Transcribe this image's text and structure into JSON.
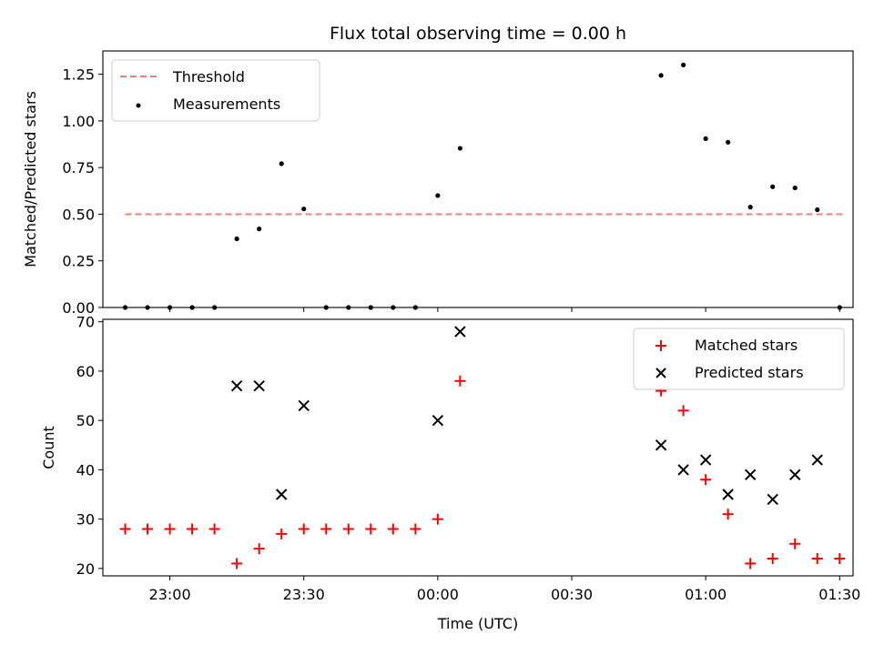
{
  "chart_data": [
    {
      "type": "scatter",
      "title": "Flux total observing time = 0.00 h",
      "xlabel": "",
      "ylabel": "Matched/Predicted stars",
      "ylim": [
        0,
        1.375
      ],
      "yticks": [
        "0.00",
        "0.25",
        "0.50",
        "0.75",
        "1.00",
        "1.25"
      ],
      "ytick_values": [
        0,
        0.25,
        0.5,
        0.75,
        1.0,
        1.25
      ],
      "legend_position": "top-left",
      "threshold": {
        "name": "Threshold",
        "value": 0.5,
        "x_start": "22:50",
        "x_end": "01:31",
        "color": "#f08080"
      },
      "series": [
        {
          "name": "Measurements",
          "color": "#000000",
          "marker": "dot",
          "x": [
            "22:50",
            "22:55",
            "23:00",
            "23:05",
            "23:10",
            "23:15",
            "23:20",
            "23:25",
            "23:30",
            "23:35",
            "23:40",
            "23:45",
            "23:50",
            "23:55",
            "00:00",
            "00:05",
            "00:50",
            "00:55",
            "01:00",
            "01:05",
            "01:10",
            "01:15",
            "01:20",
            "01:25",
            "01:30"
          ],
          "y": [
            0,
            0,
            0,
            0,
            0,
            0.368,
            0.421,
            0.771,
            0.528,
            0,
            0,
            0,
            0,
            0,
            0.6,
            0.853,
            1.244,
            1.3,
            0.905,
            0.886,
            0.538,
            0.647,
            0.641,
            0.524,
            0
          ]
        }
      ]
    },
    {
      "type": "scatter",
      "title": "",
      "xlabel": "Time (UTC)",
      "ylabel": "Count",
      "ylim": [
        18.5,
        70.5
      ],
      "yticks": [
        "20",
        "30",
        "40",
        "50",
        "60",
        "70"
      ],
      "ytick_values": [
        20,
        30,
        40,
        50,
        60,
        70
      ],
      "legend_position": "top-right",
      "series": [
        {
          "name": "Matched stars",
          "color": "#ff0000",
          "marker": "plus",
          "x": [
            "22:50",
            "22:55",
            "23:00",
            "23:05",
            "23:10",
            "23:15",
            "23:20",
            "23:25",
            "23:30",
            "23:35",
            "23:40",
            "23:45",
            "23:50",
            "23:55",
            "00:00",
            "00:05",
            "00:50",
            "00:55",
            "01:00",
            "01:05",
            "01:10",
            "01:15",
            "01:20",
            "01:25",
            "01:30"
          ],
          "y": [
            28,
            28,
            28,
            28,
            28,
            21,
            24,
            27,
            28,
            28,
            28,
            28,
            28,
            28,
            30,
            58,
            56,
            52,
            38,
            31,
            21,
            22,
            25,
            22,
            22
          ]
        },
        {
          "name": "Predicted stars",
          "color": "#000000",
          "marker": "x",
          "x": [
            "23:15",
            "23:20",
            "23:25",
            "23:30",
            "00:00",
            "00:05",
            "00:50",
            "00:55",
            "01:00",
            "01:05",
            "01:10",
            "01:15",
            "01:20",
            "01:25"
          ],
          "y": [
            57,
            57,
            35,
            53,
            50,
            68,
            45,
            40,
            42,
            35,
            39,
            34,
            39,
            42
          ]
        }
      ]
    }
  ],
  "x_axis": {
    "range": [
      "22:45",
      "01:33"
    ],
    "ticks": [
      "23:00",
      "23:30",
      "00:00",
      "00:30",
      "01:00",
      "01:30"
    ]
  }
}
